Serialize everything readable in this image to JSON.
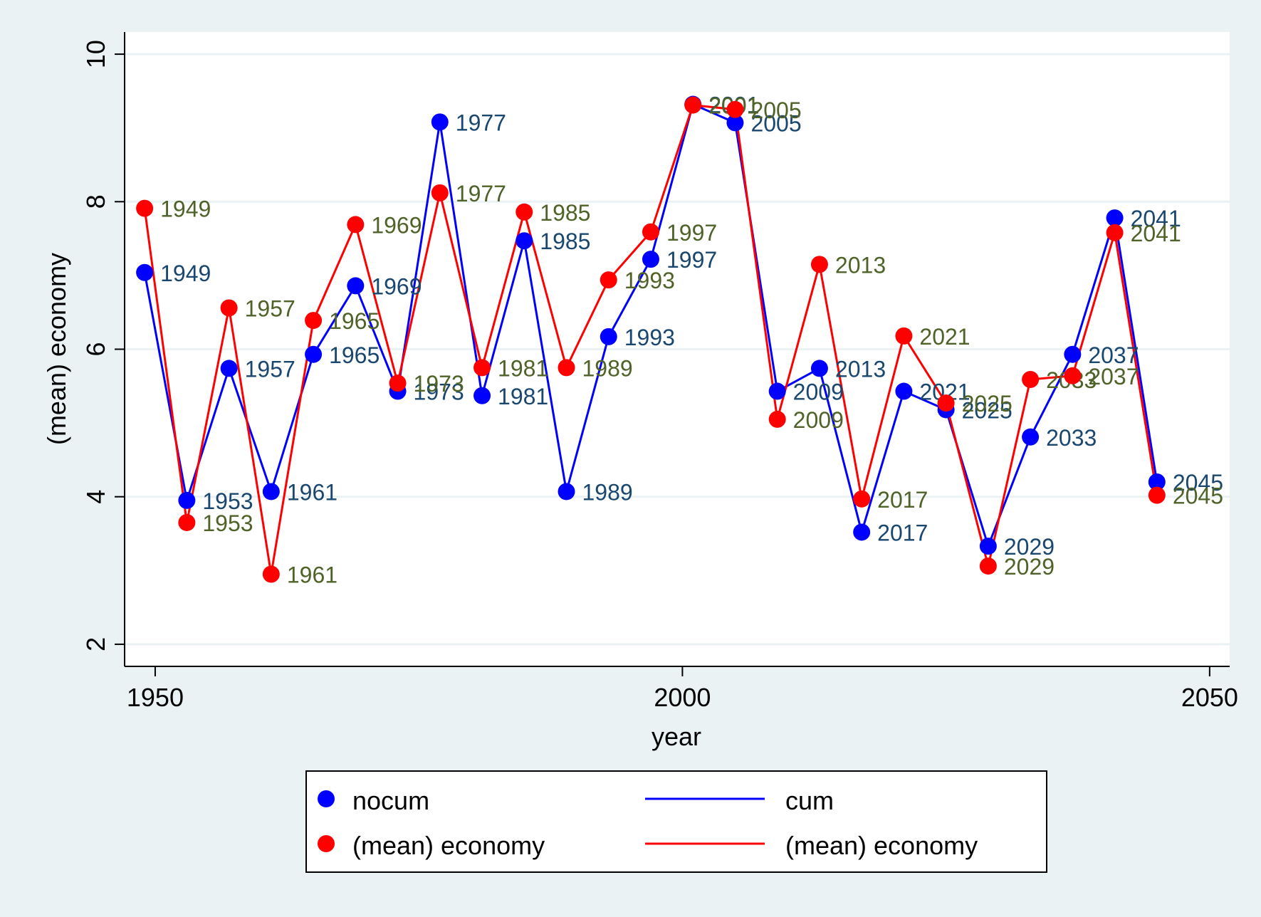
{
  "chart_data": {
    "type": "line",
    "xlabel": "year",
    "ylabel": "(mean) economy",
    "xlim": [
      1947.1,
      2051.9
    ],
    "ylim": [
      1.7,
      10.3
    ],
    "xticks": [
      1950,
      2000,
      2050
    ],
    "yticks": [
      2,
      4,
      6,
      8,
      10
    ],
    "grid": true,
    "legend_position": "bottom",
    "x": [
      1949,
      1953,
      1957,
      1961,
      1965,
      1969,
      1973,
      1977,
      1981,
      1985,
      1989,
      1993,
      1997,
      2001,
      2005,
      2009,
      2013,
      2017,
      2021,
      2025,
      2029,
      2033,
      2037,
      2041,
      2045
    ],
    "point_labels": [
      "1949",
      "1953",
      "1957",
      "1961",
      "1965",
      "1969",
      "1973",
      "1977",
      "1981",
      "1985",
      "1989",
      "1993",
      "1997",
      "2001",
      "2005",
      "2009",
      "2013",
      "2017",
      "2021",
      "2025",
      "2029",
      "2033",
      "2037",
      "2041",
      "2045"
    ],
    "series": [
      {
        "name": "nocum",
        "line_name": "cum",
        "color": "#0000ff",
        "label_color": "#1a476f",
        "values": [
          7.04,
          3.95,
          5.74,
          4.07,
          5.93,
          6.86,
          5.43,
          9.08,
          5.37,
          7.47,
          4.07,
          6.17,
          7.22,
          9.32,
          9.07,
          5.43,
          5.74,
          3.52,
          5.43,
          5.18,
          3.33,
          4.81,
          5.93,
          7.78,
          4.2
        ]
      },
      {
        "name": "(mean) economy",
        "line_name": "(mean) economy",
        "color": "#ff0000",
        "label_color": "#4f6228",
        "values": [
          7.91,
          3.65,
          6.56,
          2.95,
          6.39,
          7.69,
          5.54,
          8.12,
          5.75,
          7.86,
          5.75,
          6.94,
          7.59,
          9.31,
          9.25,
          5.05,
          7.15,
          3.97,
          6.18,
          5.27,
          3.06,
          5.59,
          5.64,
          7.58,
          4.02
        ]
      }
    ]
  }
}
